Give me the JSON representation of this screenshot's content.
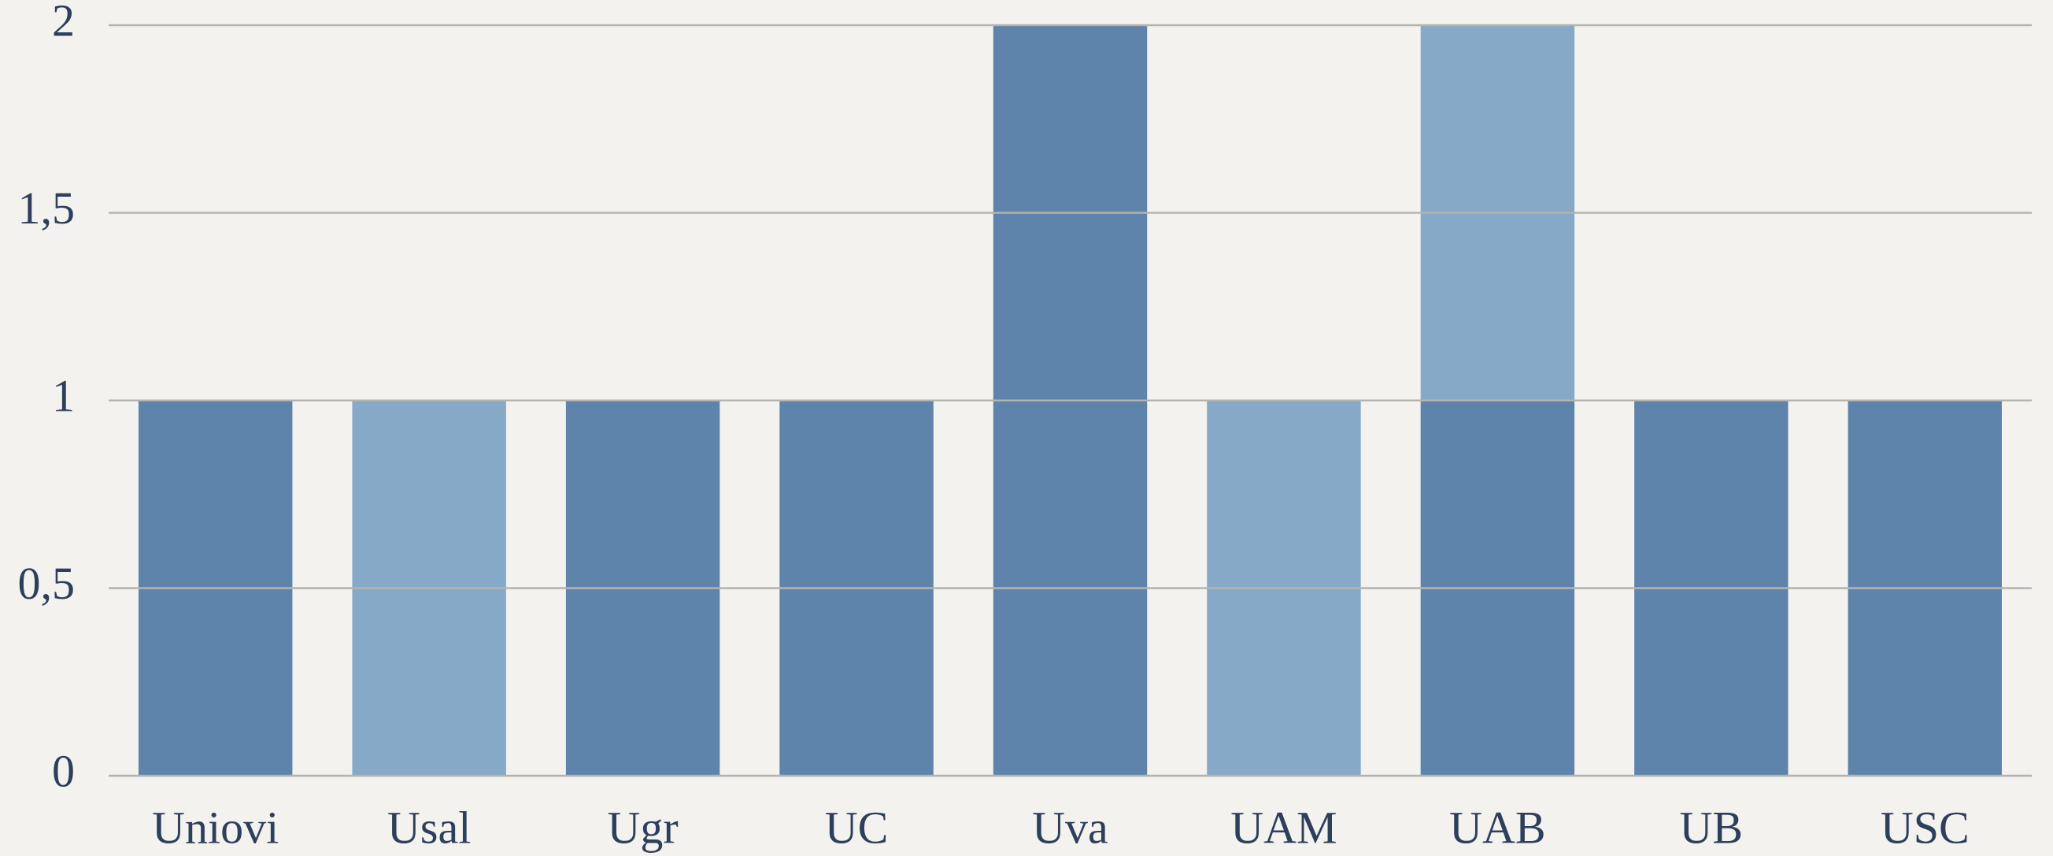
{
  "chart_data": {
    "type": "stacked_bar",
    "categories": [
      "Uniovi",
      "Usal",
      "Ugr",
      "UC",
      "Uva",
      "UAM",
      "UAB",
      "UB",
      "USC"
    ],
    "series": [
      {
        "color": "#5f84ab",
        "values": [
          1,
          0,
          1,
          1,
          2,
          0,
          1,
          1,
          1
        ]
      },
      {
        "color": "#85a9c7",
        "values": [
          0,
          1,
          0,
          0,
          0,
          1,
          1,
          0,
          0
        ]
      }
    ],
    "ylim": [
      0,
      2
    ],
    "yticks": [
      0,
      {
        "value": 0.5,
        "label": "0,5"
      },
      1,
      {
        "value": 1.5,
        "label": "1,5"
      },
      2
    ],
    "grid": true
  }
}
